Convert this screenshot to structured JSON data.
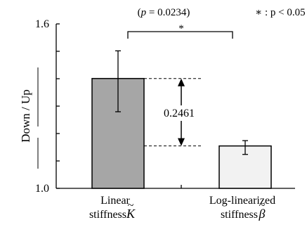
{
  "chart_data": {
    "type": "bar",
    "categories": [
      {
        "line1": "Linear",
        "line2": "stiffness",
        "symbol": "K",
        "accent": "~"
      },
      {
        "line1": "Log-linearized",
        "line2": "stiffness",
        "symbol": "β",
        "accent": "~"
      }
    ],
    "values": [
      1.4008,
      1.1547
    ],
    "error_low": [
      1.2795,
      1.1238
    ],
    "error_high": [
      1.5017,
      1.1741
    ],
    "bar_colors": [
      "#a6a6a6",
      "#f2f2f2"
    ],
    "ylim": [
      1.0,
      1.6
    ],
    "yticks": [
      1.0,
      1.1,
      1.2,
      1.3,
      1.4,
      1.5,
      1.6
    ],
    "ytick_labels": {
      "1.0": "1.0",
      "1.6": "1.6"
    },
    "ylabel": "Down / Up",
    "difference_label": "0.2461",
    "significance": {
      "p_text": "(p = 0.0234)",
      "p_italic": "p",
      "p_rest": " = 0.0234)",
      "star": "*",
      "legend_star": "∗",
      "legend_text": ": p < 0.05"
    },
    "grid": false,
    "legend": "top-right"
  }
}
